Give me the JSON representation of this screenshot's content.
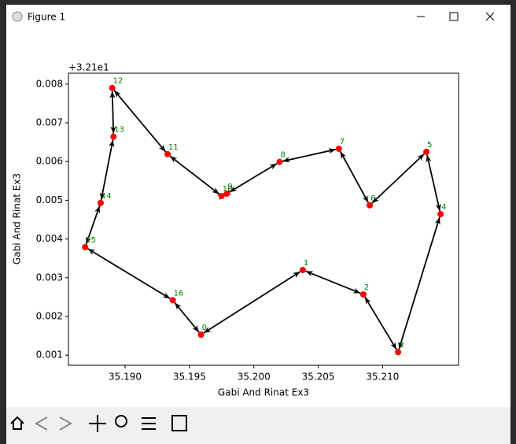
{
  "window": {
    "title": "Figure 1"
  },
  "chart_data": {
    "type": "scatter",
    "xlabel": "Gabi And Rinat Ex3",
    "ylabel": "Gabi And Rinat Ex3",
    "y_offset_label": "+3.21e1",
    "x": [
      35.1959,
      35.2038,
      35.2085,
      35.2112,
      35.2145,
      35.2134,
      35.209,
      35.2066,
      35.202,
      35.1979,
      35.1975,
      35.1933,
      35.189,
      35.1891,
      35.1881,
      35.1869,
      35.1937
    ],
    "series": [
      {
        "color": "#ff0000",
        "values": [
          0.00153,
          0.0032,
          0.00257,
          0.00108,
          0.00464,
          0.00625,
          0.00487,
          0.00633,
          0.00599,
          0.00517,
          0.00511,
          0.00619,
          0.0079,
          0.00664,
          0.00493,
          0.00379,
          0.00242
        ]
      }
    ],
    "point_labels": [
      "0",
      "1",
      "2",
      "3",
      "4",
      "5",
      "6",
      "7",
      "8",
      "9",
      "10",
      "11",
      "12",
      "13",
      "14",
      "15",
      "16"
    ],
    "label_color": "#008000",
    "xlim": [
      35.1856,
      35.2159
    ],
    "ylim": [
      0.00074,
      0.00828
    ],
    "xticks": [
      {
        "value": 35.19,
        "label": "35.190"
      },
      {
        "value": 35.195,
        "label": "35.195"
      },
      {
        "value": 35.2,
        "label": "35.200"
      },
      {
        "value": 35.205,
        "label": "35.205"
      },
      {
        "value": 35.21,
        "label": "35.210"
      }
    ],
    "yticks": [
      0.001,
      0.002,
      0.003,
      0.004,
      0.005,
      0.006,
      0.007,
      0.008
    ]
  }
}
